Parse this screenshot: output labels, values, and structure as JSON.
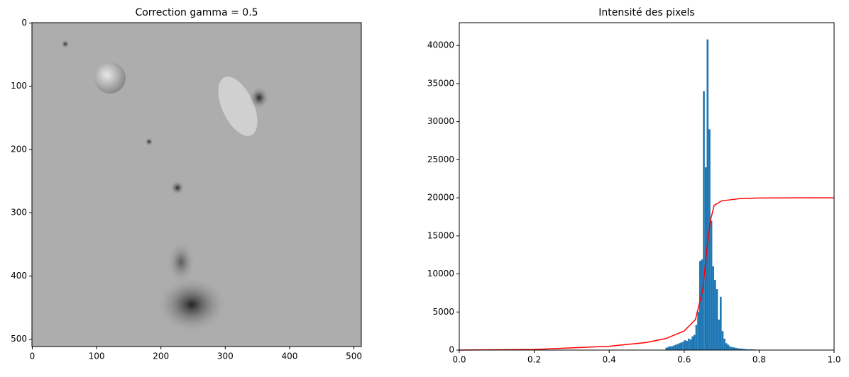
{
  "chart_data": [
    {
      "type": "image",
      "title": "Correction gamma = 0.5",
      "xlim": [
        -0.5,
        511.5
      ],
      "ylim": [
        511.5,
        -0.5
      ],
      "xticks": [
        0,
        100,
        200,
        300,
        400,
        500
      ],
      "yticks": [
        0,
        100,
        200,
        300,
        400,
        500
      ]
    },
    {
      "type": "histogram",
      "title": "Intensité des pixels",
      "color": "#1f77b4",
      "bins": [
        0.55,
        0.555,
        0.56,
        0.565,
        0.57,
        0.575,
        0.58,
        0.585,
        0.59,
        0.595,
        0.6,
        0.605,
        0.61,
        0.615,
        0.62,
        0.625,
        0.63,
        0.635,
        0.64,
        0.645,
        0.65,
        0.655,
        0.66,
        0.665,
        0.67,
        0.675,
        0.68,
        0.685,
        0.69,
        0.695,
        0.7,
        0.705,
        0.71,
        0.715,
        0.72,
        0.725,
        0.73,
        0.735,
        0.74,
        0.745,
        0.75,
        0.755,
        0.76,
        0.765,
        0.77,
        0.775,
        0.78,
        0.785,
        0.79,
        0.795,
        0.8
      ],
      "values": [
        300,
        400,
        500,
        500,
        600,
        700,
        800,
        900,
        1000,
        1100,
        1300,
        1200,
        1500,
        1400,
        1800,
        2000,
        3300,
        5000,
        11700,
        11900,
        34000,
        24000,
        40800,
        29000,
        17000,
        11000,
        9200,
        8000,
        4000,
        7000,
        2500,
        1500,
        900,
        700,
        500,
        400,
        350,
        300,
        250,
        200,
        200,
        150,
        150,
        100,
        100,
        100,
        80,
        80,
        60,
        50
      ],
      "cdf": {
        "color": "#ff0000",
        "x": [
          0,
          0.2,
          0.4,
          0.5,
          0.55,
          0.6,
          0.63,
          0.65,
          0.66,
          0.67,
          0.68,
          0.7,
          0.75,
          0.8,
          1.0
        ],
        "values": [
          0,
          80,
          500,
          1000,
          1500,
          2500,
          4000,
          8000,
          13000,
          17000,
          19000,
          19600,
          19900,
          19980,
          20000
        ]
      },
      "xlim": [
        0,
        1
      ],
      "ylim": [
        0,
        43000
      ],
      "xticks": [
        {
          "value": 0,
          "label": "0.0"
        },
        0.2,
        0.4,
        0.6,
        0.8,
        {
          "value": 1,
          "label": "1.0"
        }
      ],
      "yticks": [
        0,
        5000,
        10000,
        15000,
        20000,
        25000,
        30000,
        35000,
        40000
      ]
    }
  ]
}
